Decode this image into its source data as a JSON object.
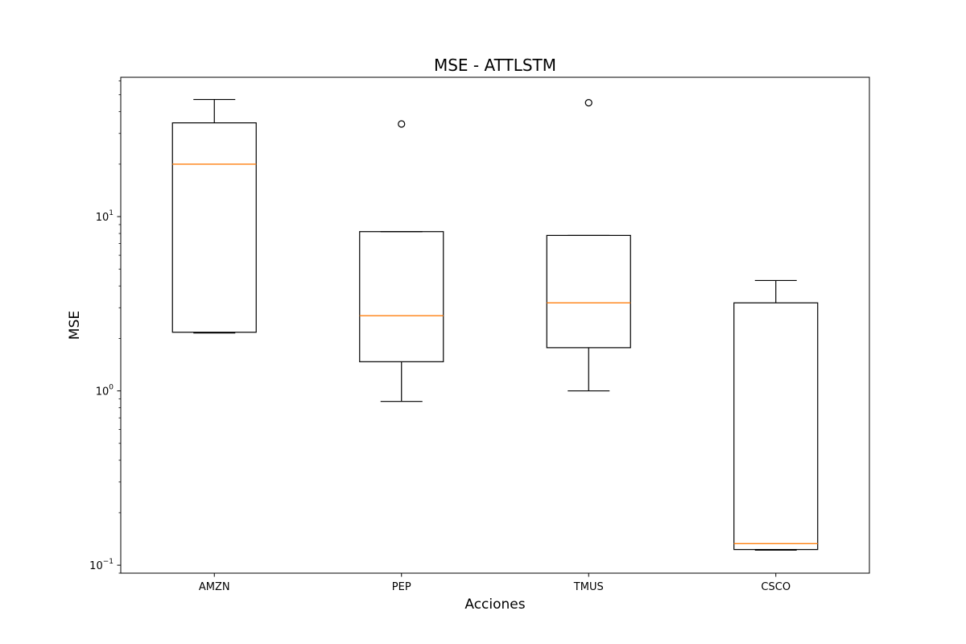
{
  "chart_data": {
    "type": "box",
    "title": "MSE - ATTLSTM",
    "xlabel": "Acciones",
    "ylabel": "MSE",
    "yscale": "log",
    "ylim": [
      0.09,
      63
    ],
    "yticks": [
      {
        "value": 0.1,
        "base": "10",
        "exp": "−1"
      },
      {
        "value": 1,
        "base": "10",
        "exp": "0"
      },
      {
        "value": 10,
        "base": "10",
        "exp": "1"
      }
    ],
    "grid": false,
    "box_color": "#000000",
    "median_color": "#ff7f0e",
    "categories": [
      "AMZN",
      "PEP",
      "TMUS",
      "CSCO"
    ],
    "boxes": [
      {
        "category": "AMZN",
        "whislo": 2.15,
        "q1": 2.17,
        "median": 20.0,
        "q3": 34.5,
        "whishi": 47.0,
        "fliers": []
      },
      {
        "category": "PEP",
        "whislo": 0.87,
        "q1": 1.47,
        "median": 2.7,
        "q3": 8.2,
        "whishi": 8.2,
        "fliers": [
          34.0
        ]
      },
      {
        "category": "TMUS",
        "whislo": 1.0,
        "q1": 1.77,
        "median": 3.2,
        "q3": 7.8,
        "whishi": 7.8,
        "fliers": [
          45.0
        ]
      },
      {
        "category": "CSCO",
        "whislo": 0.122,
        "q1": 0.123,
        "median": 0.133,
        "q3": 3.2,
        "whishi": 4.3,
        "fliers": []
      }
    ]
  }
}
